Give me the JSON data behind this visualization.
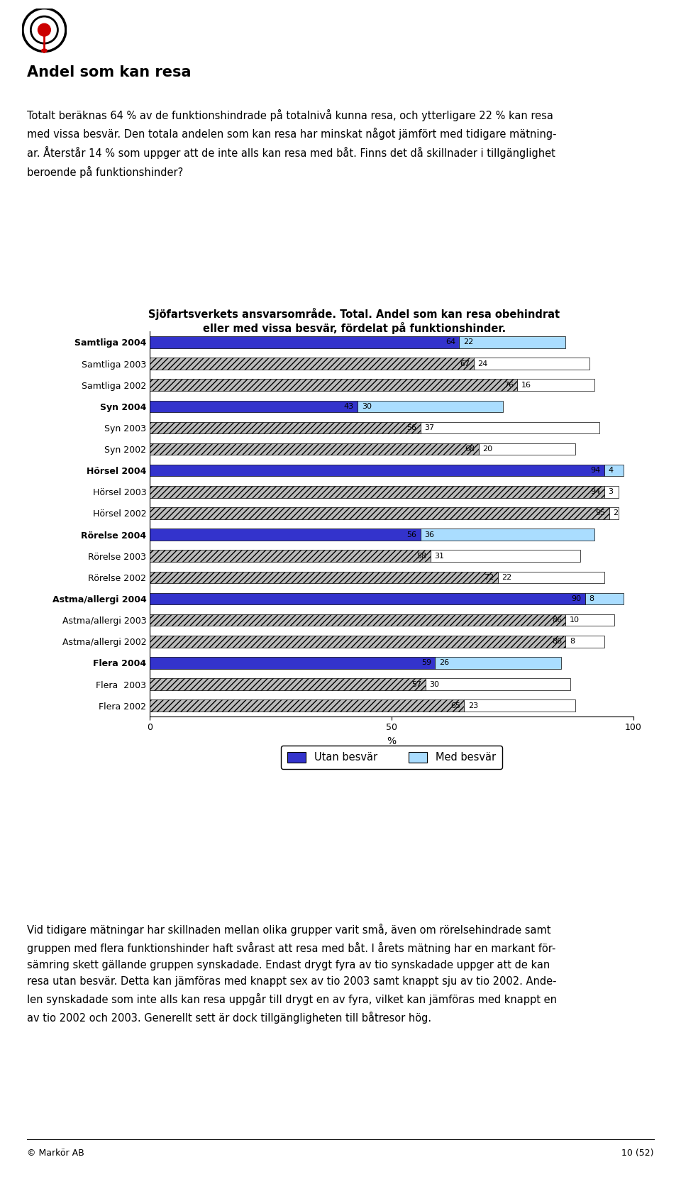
{
  "title_line1": "Sjöfartsverkets ansvarsområde. Total. Andel som kan resa obehindrat",
  "title_line2": "eller med vissa besvär, fördelat på funktionshinder.",
  "categories": [
    "Samtliga 2004",
    "Samtliga 2003",
    "Samtliga 2002",
    "Syn 2004",
    "Syn 2003",
    "Syn 2002",
    "Hörsel 2004",
    "Hörsel 2003",
    "Hörsel 2002",
    "Rörelse 2004",
    "Rörelse 2003",
    "Rörelse 2002",
    "Astma/allergi 2004",
    "Astma/allergi 2003",
    "Astma/allergi 2002",
    "Flera 2004",
    "Flera  2003",
    "Flera 2002"
  ],
  "utan_besvar": [
    64,
    67,
    76,
    43,
    56,
    68,
    94,
    94,
    95,
    56,
    58,
    72,
    90,
    86,
    86,
    59,
    57,
    65
  ],
  "med_besvar": [
    22,
    24,
    16,
    30,
    37,
    20,
    4,
    3,
    2,
    36,
    31,
    22,
    8,
    10,
    8,
    26,
    30,
    23
  ],
  "is_2004": [
    true,
    false,
    false,
    true,
    false,
    false,
    true,
    false,
    false,
    true,
    false,
    false,
    true,
    false,
    false,
    true,
    false,
    false
  ],
  "color_utan_2004": "#3333cc",
  "color_utan_older": "#bbbbbb",
  "color_med_2004": "#aaddff",
  "color_med_older": "#ffffff",
  "xlabel": "%",
  "xlim": [
    0,
    100
  ],
  "xticks": [
    0,
    50,
    100
  ],
  "heading": "Andel som kan resa",
  "legend_utan": "Utan besvär",
  "legend_med": "Med besvär",
  "page_footer": "© Markör AB",
  "page_number": "10 (52)"
}
